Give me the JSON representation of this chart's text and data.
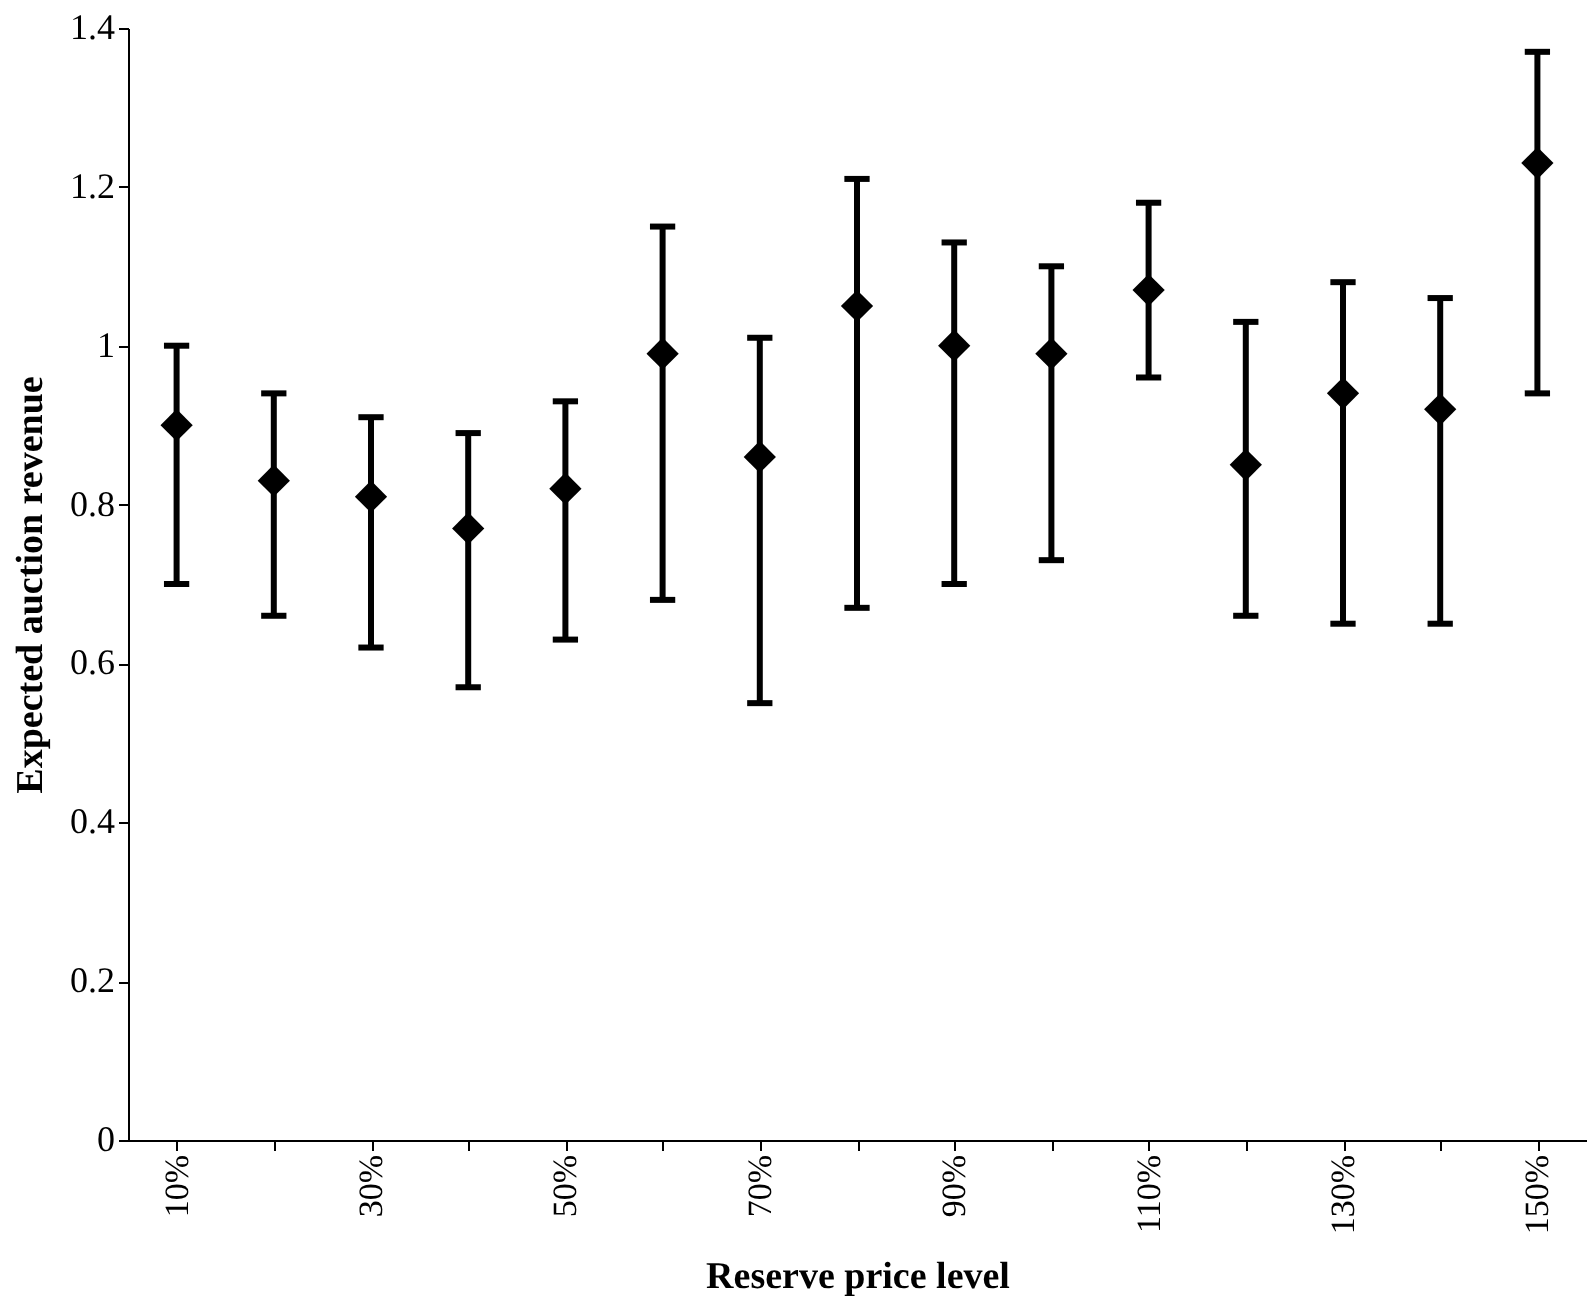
{
  "chart_data": {
    "type": "scatter",
    "xlabel": "Reserve price level",
    "ylabel": "Expected auction revenue",
    "categories": [
      "10%",
      null,
      "30%",
      null,
      "50%",
      null,
      "70%",
      null,
      "90%",
      null,
      "110%",
      null,
      "130%",
      null,
      "150%"
    ],
    "values": [
      0.9,
      0.83,
      0.81,
      0.77,
      0.82,
      0.99,
      0.86,
      1.05,
      1.0,
      0.99,
      1.07,
      0.85,
      0.94,
      0.92,
      1.23
    ],
    "errors": [
      [
        0.7,
        1.0
      ],
      [
        0.66,
        0.94
      ],
      [
        0.62,
        0.91
      ],
      [
        0.57,
        0.89
      ],
      [
        0.63,
        0.93
      ],
      [
        0.68,
        1.15
      ],
      [
        0.55,
        1.01
      ],
      [
        0.67,
        1.21
      ],
      [
        0.7,
        1.13
      ],
      [
        0.73,
        1.1
      ],
      [
        0.96,
        1.18
      ],
      [
        0.66,
        1.03
      ],
      [
        0.65,
        1.08
      ],
      [
        0.65,
        1.06
      ],
      [
        0.94,
        1.37
      ]
    ],
    "color": "#000000",
    "marker": "diamond",
    "grid": false,
    "ylim": [
      0,
      1.4
    ],
    "yticks": [
      0,
      0.2,
      0.4,
      0.6,
      0.8,
      1,
      1.2,
      1.4
    ]
  }
}
